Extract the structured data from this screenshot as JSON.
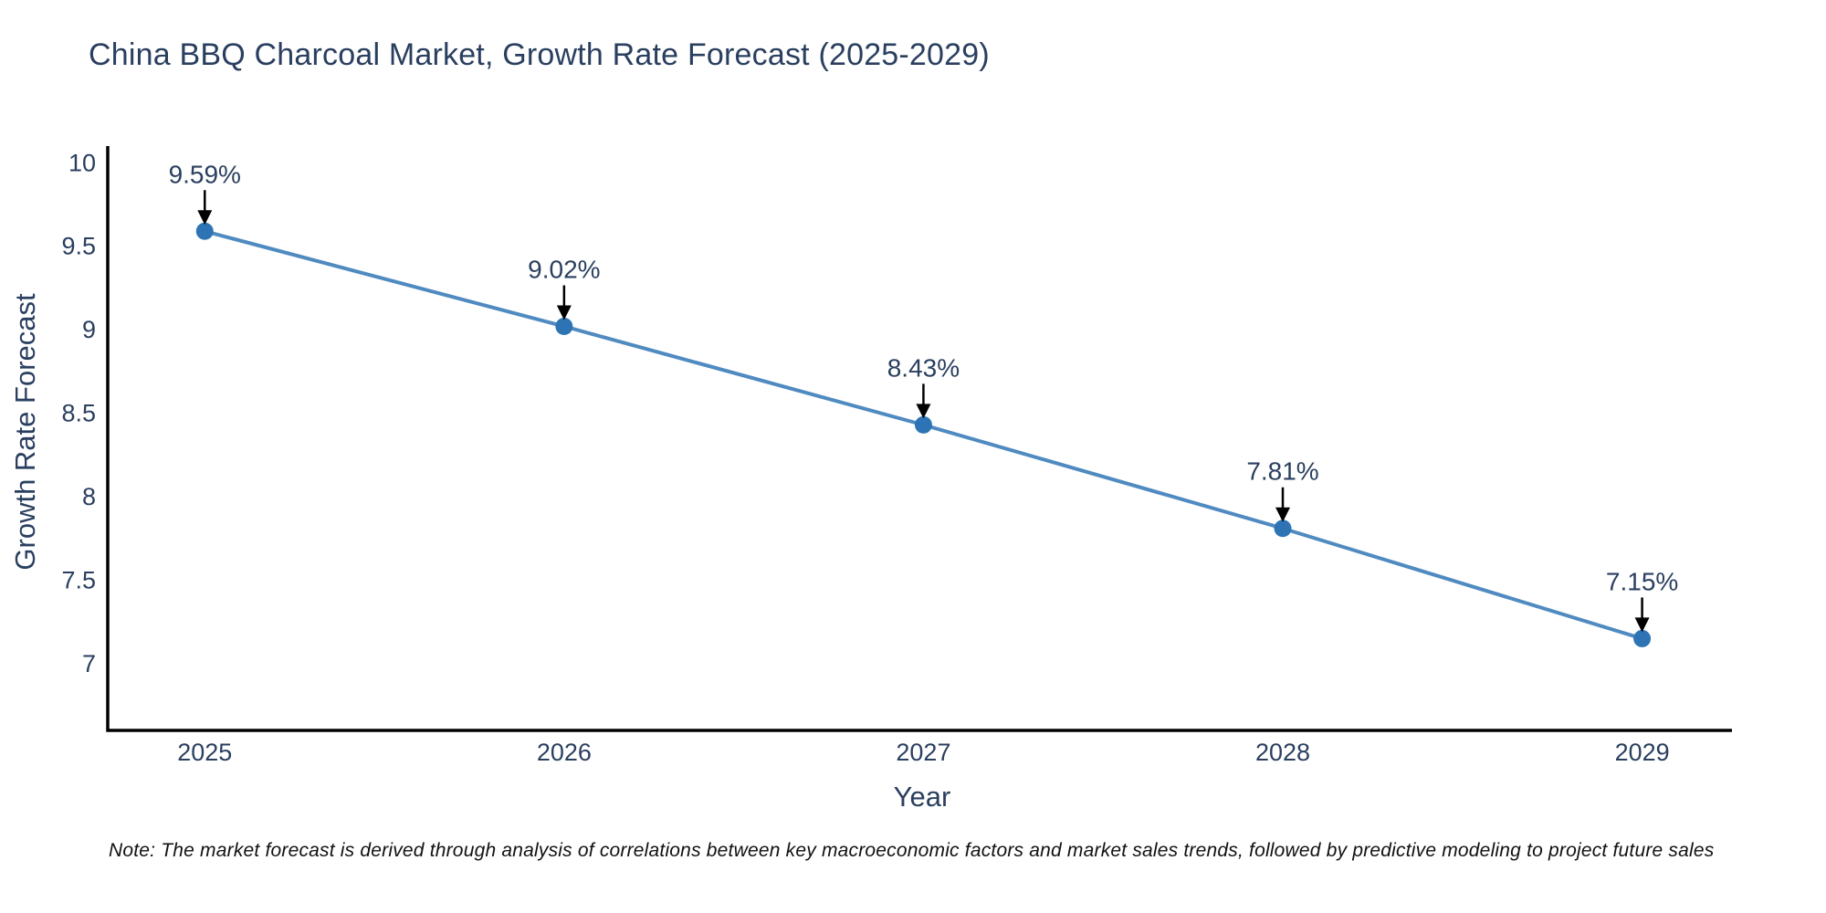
{
  "page": {
    "background": "#ffffff"
  },
  "chart_data": {
    "type": "line",
    "title": "China BBQ Charcoal Market, Growth Rate Forecast (2025-2029)",
    "xlabel": "Year",
    "ylabel": "Growth Rate Forecast",
    "x": [
      2025,
      2026,
      2027,
      2028,
      2029
    ],
    "series": [
      {
        "name": "Growth Rate Forecast",
        "values": [
          9.59,
          9.02,
          8.43,
          7.81,
          7.15
        ],
        "point_labels": [
          "9.59%",
          "9.02%",
          "8.43%",
          "7.81%",
          "7.15%"
        ]
      }
    ],
    "xticks": [
      "2025",
      "2026",
      "2027",
      "2028",
      "2029"
    ],
    "yticks": [
      "10",
      "9.5",
      "9",
      "8.5",
      "8",
      "7.5",
      "7"
    ],
    "ytick_values": [
      10,
      9.5,
      9,
      8.5,
      8,
      7.5,
      7
    ],
    "xlim": [
      2024.73,
      2029.25
    ],
    "ylim": [
      6.6,
      10.1
    ],
    "grid": false,
    "legend_position": "none",
    "line_color": "#4f8ac0",
    "marker_color": "#2e74b5",
    "annotation_arrow_color": "#000000",
    "axis_color": "#000000",
    "text_color": "#2a3f5f"
  },
  "note": {
    "text": "Note: The market forecast is derived through analysis of correlations between key macroeconomic factors and market sales trends, followed by predictive modeling to project future sales"
  }
}
